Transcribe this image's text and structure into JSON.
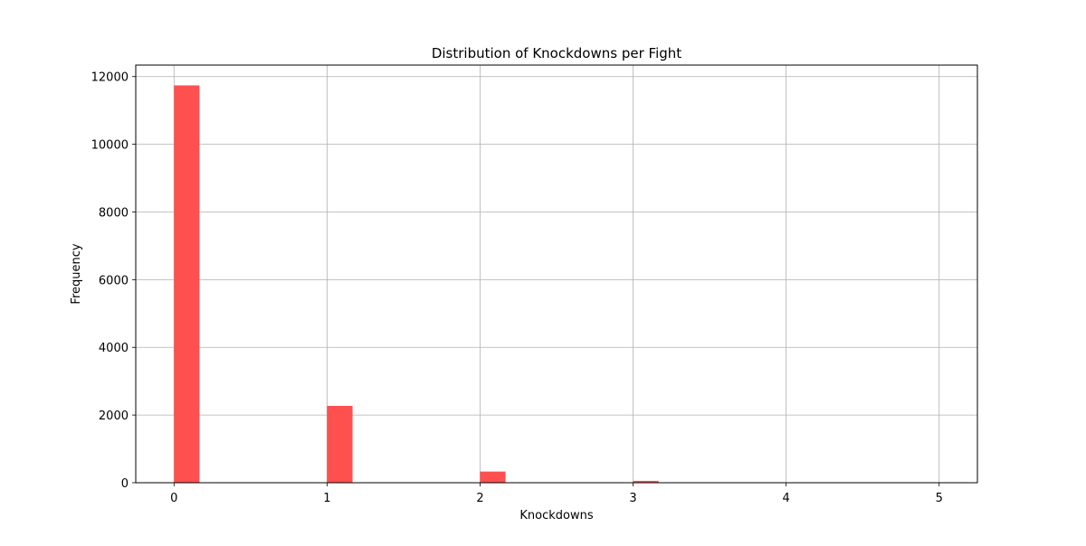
{
  "chart_data": {
    "type": "bar",
    "title": "Distribution of Knockdowns per Fight",
    "xlabel": "Knockdowns",
    "ylabel": "Frequency",
    "xlim": [
      -0.25,
      5.25
    ],
    "ylim": [
      0,
      12340
    ],
    "xticks": [
      0,
      1,
      2,
      3,
      4,
      5
    ],
    "yticks": [
      0,
      2000,
      4000,
      6000,
      8000,
      10000,
      12000
    ],
    "grid": true,
    "bar_color": "#ff5050",
    "bin_width": 0.1667,
    "bars": [
      {
        "x_start": 0.0,
        "x_end": 0.1667,
        "count": 11740
      },
      {
        "x_start": 1.0,
        "x_end": 1.1667,
        "count": 2270
      },
      {
        "x_start": 2.0,
        "x_end": 2.1667,
        "count": 330
      },
      {
        "x_start": 3.0,
        "x_end": 3.1667,
        "count": 55
      },
      {
        "x_start": 3.8333,
        "x_end": 4.0,
        "count": 6
      },
      {
        "x_start": 4.8333,
        "x_end": 5.0,
        "count": 2
      }
    ]
  }
}
